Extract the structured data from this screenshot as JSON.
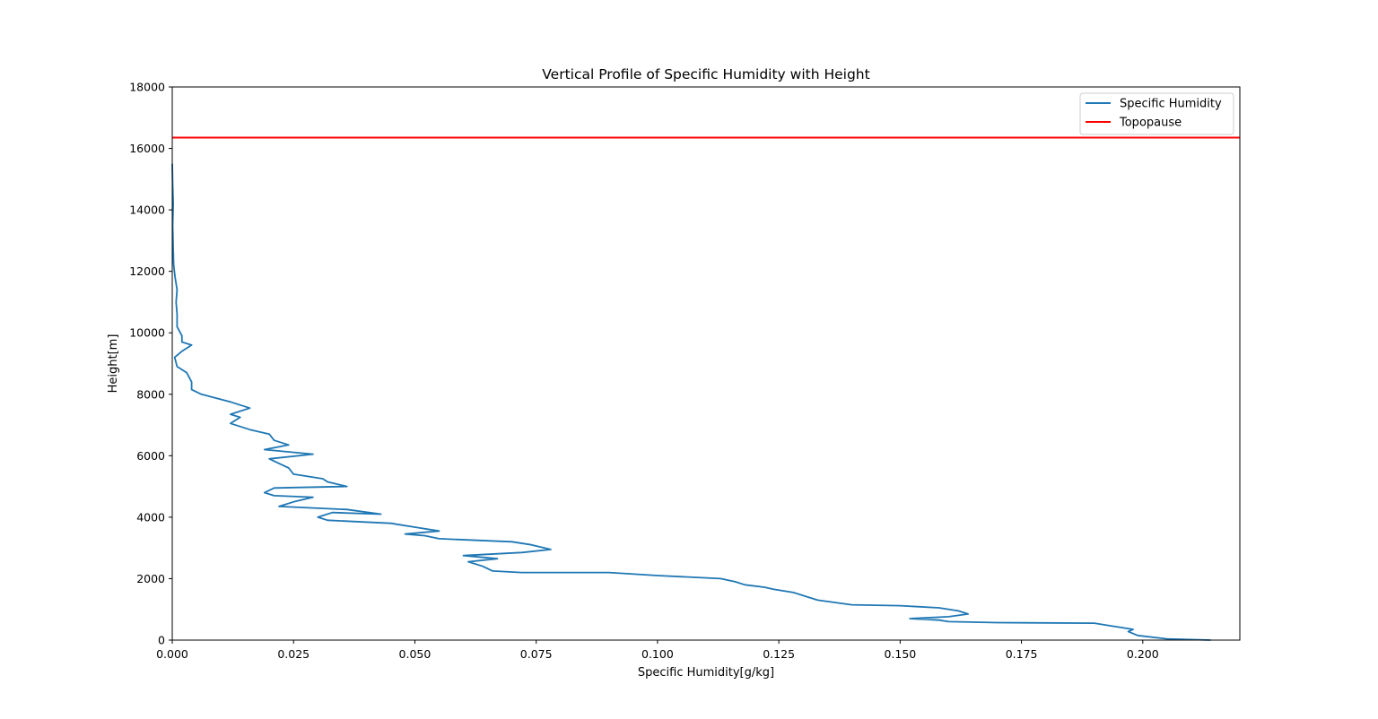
{
  "chart_data": {
    "type": "line",
    "title": "Vertical Profile of Specific Humidity with Height",
    "xlabel": "Specific Humidity[g/kg]",
    "ylabel": "Height[m]",
    "xlim": [
      0,
      0.22
    ],
    "ylim": [
      0,
      18000
    ],
    "xticks": [
      0.0,
      0.025,
      0.05,
      0.075,
      0.1,
      0.125,
      0.15,
      0.175,
      0.2
    ],
    "xtick_labels": [
      "0.000",
      "0.025",
      "0.050",
      "0.075",
      "0.100",
      "0.125",
      "0.150",
      "0.175",
      "0.200"
    ],
    "yticks": [
      0,
      2000,
      4000,
      6000,
      8000,
      10000,
      12000,
      14000,
      16000,
      18000
    ],
    "ytick_labels": [
      "0",
      "2000",
      "4000",
      "6000",
      "8000",
      "10000",
      "12000",
      "14000",
      "16000",
      "18000"
    ],
    "grid": false,
    "legend_position": "top-right",
    "series": [
      {
        "name": "Specific Humidity",
        "color": "#1f77b4",
        "points": [
          [
            0.214,
            0
          ],
          [
            0.205,
            40
          ],
          [
            0.199,
            150
          ],
          [
            0.197,
            280
          ],
          [
            0.198,
            350
          ],
          [
            0.194,
            450
          ],
          [
            0.19,
            550
          ],
          [
            0.17,
            570
          ],
          [
            0.16,
            600
          ],
          [
            0.158,
            650
          ],
          [
            0.152,
            700
          ],
          [
            0.16,
            760
          ],
          [
            0.164,
            850
          ],
          [
            0.162,
            950
          ],
          [
            0.158,
            1050
          ],
          [
            0.15,
            1120
          ],
          [
            0.14,
            1150
          ],
          [
            0.133,
            1300
          ],
          [
            0.131,
            1400
          ],
          [
            0.128,
            1550
          ],
          [
            0.124,
            1650
          ],
          [
            0.122,
            1720
          ],
          [
            0.118,
            1800
          ],
          [
            0.116,
            1900
          ],
          [
            0.113,
            2000
          ],
          [
            0.1,
            2100
          ],
          [
            0.09,
            2200
          ],
          [
            0.072,
            2200
          ],
          [
            0.066,
            2250
          ],
          [
            0.064,
            2400
          ],
          [
            0.061,
            2550
          ],
          [
            0.067,
            2650
          ],
          [
            0.06,
            2750
          ],
          [
            0.072,
            2850
          ],
          [
            0.078,
            2950
          ],
          [
            0.074,
            3100
          ],
          [
            0.07,
            3200
          ],
          [
            0.055,
            3300
          ],
          [
            0.052,
            3400
          ],
          [
            0.048,
            3450
          ],
          [
            0.055,
            3550
          ],
          [
            0.051,
            3650
          ],
          [
            0.045,
            3800
          ],
          [
            0.032,
            3900
          ],
          [
            0.03,
            4000
          ],
          [
            0.033,
            4150
          ],
          [
            0.043,
            4100
          ],
          [
            0.036,
            4250
          ],
          [
            0.022,
            4350
          ],
          [
            0.025,
            4500
          ],
          [
            0.029,
            4650
          ],
          [
            0.021,
            4700
          ],
          [
            0.019,
            4800
          ],
          [
            0.021,
            4950
          ],
          [
            0.036,
            5000
          ],
          [
            0.032,
            5150
          ],
          [
            0.031,
            5250
          ],
          [
            0.025,
            5400
          ],
          [
            0.024,
            5600
          ],
          [
            0.022,
            5750
          ],
          [
            0.02,
            5900
          ],
          [
            0.029,
            6050
          ],
          [
            0.019,
            6200
          ],
          [
            0.024,
            6350
          ],
          [
            0.021,
            6500
          ],
          [
            0.02,
            6700
          ],
          [
            0.016,
            6850
          ],
          [
            0.012,
            7050
          ],
          [
            0.014,
            7250
          ],
          [
            0.012,
            7350
          ],
          [
            0.016,
            7550
          ],
          [
            0.012,
            7750
          ],
          [
            0.006,
            8000
          ],
          [
            0.004,
            8150
          ],
          [
            0.004,
            8400
          ],
          [
            0.003,
            8700
          ],
          [
            0.001,
            8900
          ],
          [
            0.0005,
            9200
          ],
          [
            0.002,
            9400
          ],
          [
            0.004,
            9600
          ],
          [
            0.002,
            9700
          ],
          [
            0.002,
            9900
          ],
          [
            0.001,
            10200
          ],
          [
            0.001,
            10600
          ],
          [
            0.0008,
            11000
          ],
          [
            0.001,
            11400
          ],
          [
            0.0006,
            11800
          ],
          [
            0.0003,
            12200
          ],
          [
            0.0002,
            12700
          ],
          [
            0.0001,
            13500
          ],
          [
            0.0002,
            14200
          ],
          [
            0.0001,
            14800
          ],
          [
            0.0,
            15500
          ]
        ]
      },
      {
        "name": "Topopause",
        "color": "#ff0000",
        "y": 16350
      }
    ]
  }
}
